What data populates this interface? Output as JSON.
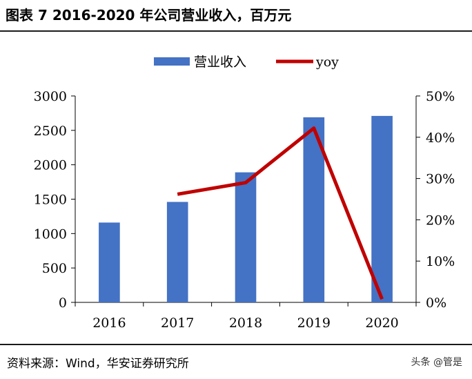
{
  "header": {
    "title": "图表 7 2016-2020 年公司营业收入，百万元"
  },
  "footer": {
    "source": "资料来源：Wind，华安证券研究所",
    "watermark": "头条 @管是"
  },
  "colors": {
    "bar": "#4472C4",
    "line": "#C00000"
  },
  "chart_data": {
    "type": "bar",
    "categories": [
      "2016",
      "2017",
      "2018",
      "2019",
      "2020"
    ],
    "series": [
      {
        "name": "营业收入",
        "type": "bar",
        "axis": "left",
        "values": [
          1160,
          1460,
          1890,
          2690,
          2710
        ]
      },
      {
        "name": "yoy",
        "type": "line",
        "axis": "right",
        "values": [
          null,
          26.2,
          29.0,
          42.2,
          0.8
        ]
      }
    ],
    "y_left": {
      "min": 0,
      "max": 3000,
      "ticks": [
        "0",
        "500",
        "1000",
        "1500",
        "2000",
        "2500",
        "3000"
      ]
    },
    "y_right": {
      "min": 0,
      "max": 50,
      "ticks": [
        "0%",
        "10%",
        "20%",
        "30%",
        "40%",
        "50%"
      ]
    },
    "legend_position": "top-center",
    "grid": false
  }
}
